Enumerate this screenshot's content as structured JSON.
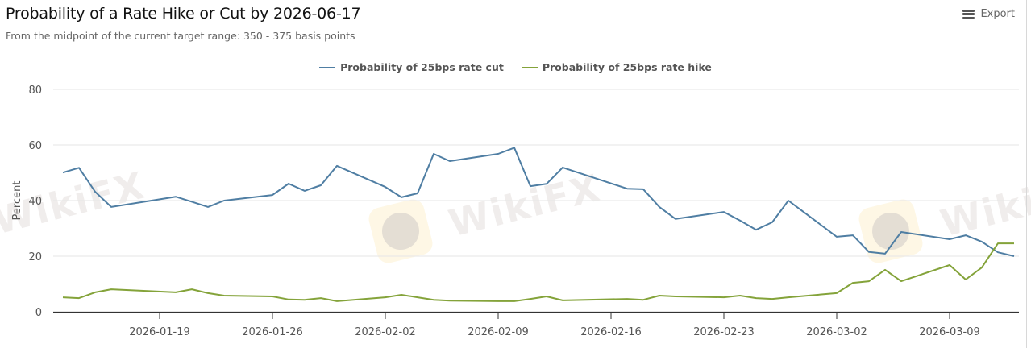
{
  "header": {
    "title": "Probability of a Rate Hike or Cut by 2026-06-17",
    "subtitle": "From the midpoint of the current target range: 350 - 375 basis points",
    "export_label": "Export",
    "export_icon": "hamburger-menu-icon"
  },
  "legend": [
    {
      "label": "Probability of 25bps rate cut",
      "color": "#4f7ea3"
    },
    {
      "label": "Probability of 25bps rate hike",
      "color": "#84a33a"
    }
  ],
  "watermark": {
    "text": "WikiFX"
  },
  "chart_data": {
    "type": "line",
    "title": "Probability of a Rate Hike or Cut by 2026-06-17",
    "subtitle": "From the midpoint of the current target range: 350 - 375 basis points",
    "xlabel": "",
    "ylabel": "Percent",
    "ylim": [
      0,
      80
    ],
    "yticks": [
      0,
      20,
      40,
      60,
      80
    ],
    "xticks": [
      "2026-01-19",
      "2026-01-26",
      "2026-02-02",
      "2026-02-09",
      "2026-02-16",
      "2026-02-23",
      "2026-03-02",
      "2026-03-09"
    ],
    "grid": true,
    "legend_position": "top-center",
    "x": [
      "2026-01-13",
      "2026-01-14",
      "2026-01-15",
      "2026-01-16",
      "2026-01-20",
      "2026-01-21",
      "2026-01-22",
      "2026-01-23",
      "2026-01-26",
      "2026-01-27",
      "2026-01-28",
      "2026-01-29",
      "2026-01-30",
      "2026-02-02",
      "2026-02-03",
      "2026-02-04",
      "2026-02-05",
      "2026-02-06",
      "2026-02-09",
      "2026-02-10",
      "2026-02-11",
      "2026-02-12",
      "2026-02-13",
      "2026-02-17",
      "2026-02-18",
      "2026-02-19",
      "2026-02-20",
      "2026-02-23",
      "2026-02-24",
      "2026-02-25",
      "2026-02-26",
      "2026-02-27",
      "2026-03-02",
      "2026-03-03",
      "2026-03-04",
      "2026-03-05",
      "2026-03-06",
      "2026-03-09",
      "2026-03-10",
      "2026-03-11",
      "2026-03-12",
      "2026-03-13"
    ],
    "series": [
      {
        "name": "Probability of 25bps rate cut",
        "color": "#4f7ea3",
        "values": [
          50.1,
          51.8,
          43.2,
          37.7,
          41.4,
          39.6,
          37.7,
          40.0,
          42.0,
          46.1,
          43.5,
          45.5,
          52.5,
          44.9,
          41.2,
          42.6,
          56.8,
          54.2,
          56.8,
          59.0,
          45.2,
          46.0,
          51.9,
          44.3,
          44.1,
          37.7,
          33.4,
          35.9,
          32.8,
          29.5,
          32.2,
          40.0,
          27.0,
          27.5,
          21.5,
          20.9,
          28.7,
          26.1,
          27.5,
          25.2,
          21.4,
          20.0
        ]
      },
      {
        "name": "Probability of 25bps rate hike",
        "color": "#84a33a",
        "values": [
          5.2,
          4.9,
          7.0,
          8.1,
          7.0,
          8.1,
          6.7,
          5.8,
          5.5,
          4.4,
          4.3,
          4.9,
          3.8,
          5.2,
          6.1,
          5.2,
          4.3,
          4.0,
          3.8,
          3.8,
          4.6,
          5.5,
          4.1,
          4.6,
          4.3,
          5.8,
          5.5,
          5.2,
          5.8,
          4.9,
          4.6,
          5.2,
          6.7,
          10.4,
          11.0,
          15.1,
          11.0,
          16.8,
          11.6,
          15.9,
          24.6,
          24.6
        ]
      }
    ]
  }
}
